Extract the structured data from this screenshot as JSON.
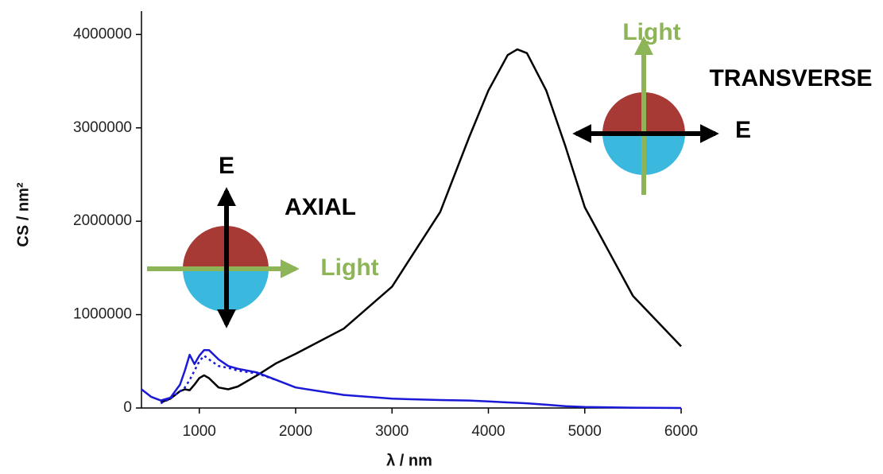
{
  "chart_data": {
    "type": "line",
    "xlabel": "λ / nm",
    "ylabel": "CS / nm²",
    "x": [
      400,
      500,
      600,
      700,
      800,
      850,
      900,
      950,
      1000,
      1050,
      1100,
      1200,
      1300,
      1400,
      1600,
      1800,
      2000,
      2500,
      3000,
      3500,
      3800,
      4000,
      4200,
      4300,
      4400,
      4600,
      4800,
      5000,
      5500,
      6000
    ],
    "series": [
      {
        "color": "#000000",
        "dash": false,
        "values": [
          null,
          null,
          60000,
          100000,
          180000,
          200000,
          190000,
          250000,
          320000,
          350000,
          320000,
          220000,
          200000,
          230000,
          350000,
          480000,
          580000,
          850000,
          1300000,
          2100000,
          2900000,
          3400000,
          3780000,
          3840000,
          3800000,
          3400000,
          2800000,
          2150000,
          1200000,
          660000
        ]
      },
      {
        "color": "#1a1ad6",
        "dash": false,
        "values": [
          200000,
          120000,
          80000,
          110000,
          250000,
          400000,
          570000,
          470000,
          560000,
          620000,
          620000,
          520000,
          450000,
          420000,
          380000,
          300000,
          220000,
          140000,
          100000,
          85000,
          80000,
          70000,
          60000,
          55000,
          50000,
          35000,
          20000,
          10000,
          3000,
          0
        ]
      },
      {
        "color": "#1a1ad6",
        "dash": true,
        "values": [
          null,
          null,
          50000,
          100000,
          180000,
          220000,
          300000,
          400000,
          500000,
          560000,
          520000,
          450000,
          430000,
          400000,
          370000,
          300000,
          null,
          null,
          null,
          null,
          null,
          null,
          null,
          null,
          null,
          null,
          null,
          null,
          null,
          null
        ]
      }
    ],
    "xlim": [
      400,
      6000
    ],
    "xticks": [
      1000,
      2000,
      3000,
      4000,
      5000,
      6000
    ],
    "ylim": [
      0,
      4250000
    ],
    "yticks": [
      0,
      1000000,
      2000000,
      3000000,
      4000000
    ],
    "annotations": [
      "Light",
      "TRANSVERSE",
      "E",
      "E",
      "AXIAL",
      "Light"
    ]
  }
}
